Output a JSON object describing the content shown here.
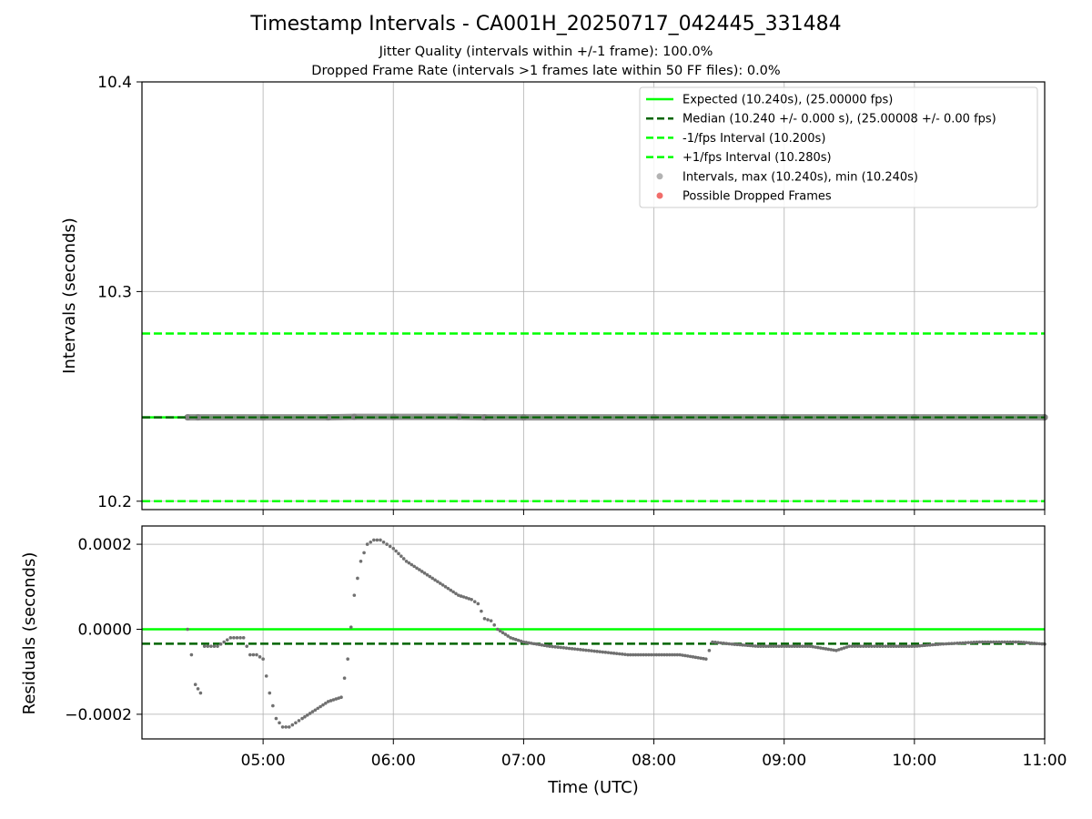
{
  "chart_data": [
    {
      "type": "line",
      "title": "Timestamp Intervals - CA001H_20250717_042445_331484",
      "subtitle_lines": [
        "Jitter Quality (intervals within +/-1 frame): 100.0%",
        "Dropped Frame Rate (intervals >1 frames late within 50 FF files): 0.0%"
      ],
      "ylabel": "Intervals (seconds)",
      "xlim": [
        4.07,
        11.0
      ],
      "ylim": [
        10.196,
        10.4
      ],
      "y_ticks": [
        {
          "value": 10.2,
          "label": "10.2"
        },
        {
          "value": 10.3,
          "label": "10.3"
        },
        {
          "value": 10.4,
          "label": "10.4"
        }
      ],
      "x_ticks": [
        5,
        6,
        7,
        8,
        9,
        10,
        11
      ],
      "grid": true,
      "legend_placement": "top-right",
      "series": [
        {
          "name": "Expected (10.240s), (25.00000 fps)",
          "kind": "hline",
          "y": 10.24,
          "color": "#00ff00",
          "style": "solid"
        },
        {
          "name": "Median (10.240 +/- 0.000 s), (25.00008 +/- 0.00 fps)",
          "kind": "hline",
          "y": 10.24,
          "color": "#006400",
          "style": "dashed"
        },
        {
          "name": "-1/fps Interval (10.200s)",
          "kind": "hline",
          "y": 10.2,
          "color": "#00ff00",
          "style": "dashed"
        },
        {
          "name": "+1/fps Interval (10.280s)",
          "kind": "hline",
          "y": 10.28,
          "color": "#00ff00",
          "style": "dashed"
        },
        {
          "name": "Intervals, max (10.240s), min (10.240s)",
          "kind": "scatter",
          "color": "#808080",
          "x": [
            4.42,
            4.5,
            5.0,
            5.5,
            5.7,
            6.0,
            6.5,
            6.7,
            7.0,
            8.0,
            9.0,
            10.0,
            11.0
          ],
          "y": [
            10.24,
            10.24,
            10.24,
            10.24,
            10.2402,
            10.2402,
            10.2402,
            10.24,
            10.24,
            10.24,
            10.24,
            10.24,
            10.24
          ]
        },
        {
          "name": "Possible Dropped Frames",
          "kind": "scatter",
          "color": "#ef5350",
          "x": [],
          "y": []
        }
      ]
    },
    {
      "type": "scatter",
      "xlabel": "Time (UTC)",
      "ylabel": "Residuals (seconds)",
      "xlim": [
        4.07,
        11.0
      ],
      "ylim": [
        -0.000258,
        0.000243
      ],
      "y_ticks": [
        {
          "value": 0.0002,
          "label": "0.0002"
        },
        {
          "value": 0.0,
          "label": "0.0000"
        },
        {
          "value": -0.0002,
          "label": "−0.0002"
        }
      ],
      "x_ticks": [
        {
          "value": 5,
          "label": "05:00"
        },
        {
          "value": 6,
          "label": "06:00"
        },
        {
          "value": 7,
          "label": "07:00"
        },
        {
          "value": 8,
          "label": "08:00"
        },
        {
          "value": 9,
          "label": "09:00"
        },
        {
          "value": 10,
          "label": "10:00"
        },
        {
          "value": 11,
          "label": "11:00"
        }
      ],
      "grid": true,
      "reference_lines": [
        {
          "y": 0.0,
          "color": "#00ff00",
          "style": "solid"
        },
        {
          "y": -3.4e-05,
          "color": "#006400",
          "style": "dashed"
        }
      ],
      "series": [
        {
          "color": "#707070",
          "x": [
            4.42,
            4.45,
            4.48,
            4.52,
            4.55,
            4.6,
            4.65,
            4.7,
            4.75,
            4.8,
            4.85,
            4.9,
            4.95,
            5.0,
            5.05,
            5.1,
            5.15,
            5.2,
            5.25,
            5.3,
            5.4,
            5.5,
            5.6,
            5.65,
            5.7,
            5.75,
            5.8,
            5.85,
            5.9,
            5.95,
            6.0,
            6.1,
            6.2,
            6.3,
            6.4,
            6.5,
            6.6,
            6.65,
            6.7,
            6.75,
            6.8,
            6.9,
            7.0,
            7.2,
            7.5,
            7.8,
            8.0,
            8.2,
            8.4,
            8.45,
            8.6,
            8.8,
            9.0,
            9.2,
            9.4,
            9.5,
            9.8,
            10.0,
            10.2,
            10.5,
            10.8,
            11.0
          ],
          "y": [
            0.0,
            -6e-05,
            -0.00013,
            -0.00015,
            -4e-05,
            -4e-05,
            -4e-05,
            -3e-05,
            -2e-05,
            -2e-05,
            -2e-05,
            -6e-05,
            -6e-05,
            -7e-05,
            -0.00015,
            -0.00021,
            -0.00023,
            -0.00023,
            -0.00022,
            -0.00021,
            -0.00019,
            -0.00017,
            -0.00016,
            -7e-05,
            8e-05,
            0.00016,
            0.0002,
            0.00021,
            0.00021,
            0.0002,
            0.00019,
            0.00016,
            0.00014,
            0.00012,
            0.0001,
            8e-05,
            7e-05,
            6e-05,
            2.5e-05,
            2e-05,
            0.0,
            -2e-05,
            -3e-05,
            -4e-05,
            -5e-05,
            -6e-05,
            -6e-05,
            -6e-05,
            -7e-05,
            -3e-05,
            -3.5e-05,
            -4e-05,
            -4e-05,
            -4e-05,
            -5e-05,
            -4e-05,
            -4e-05,
            -4e-05,
            -3.5e-05,
            -3e-05,
            -3e-05,
            -3.5e-05
          ]
        }
      ]
    }
  ]
}
